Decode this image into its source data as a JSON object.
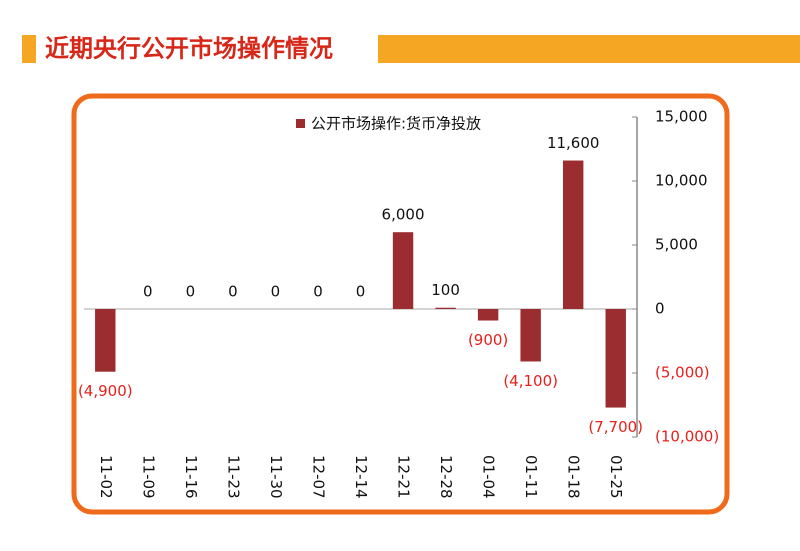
{
  "chart_data": {
    "type": "bar",
    "title": "近期央行公开市场操作情况",
    "categories": [
      "11-02",
      "11-09",
      "11-16",
      "11-23",
      "11-30",
      "12-07",
      "12-14",
      "12-21",
      "12-28",
      "01-04",
      "01-11",
      "01-18",
      "01-25"
    ],
    "series": [
      {
        "name": "公开市场操作:货币净投放",
        "color": "#9b2d30",
        "values": [
          -4900,
          0,
          0,
          0,
          0,
          0,
          0,
          6000,
          100,
          -900,
          -4100,
          11600,
          -7700
        ],
        "value_labels": [
          "(4,900)",
          "0",
          "0",
          "0",
          "0",
          "0",
          "0",
          "6,000",
          "100",
          "(900)",
          "(4,100)",
          "11,600",
          "(7,700)"
        ]
      }
    ],
    "ylim": [
      -10000,
      15000
    ],
    "yticks": [
      {
        "value": -10000,
        "label": "(10,000)"
      },
      {
        "value": -5000,
        "label": "(5,000)"
      },
      0,
      {
        "value": 5000,
        "label": "5,000"
      },
      {
        "value": 10000,
        "label": "10,000"
      },
      {
        "value": 15000,
        "label": "15,000"
      }
    ],
    "negative_color": "#e8201c"
  }
}
